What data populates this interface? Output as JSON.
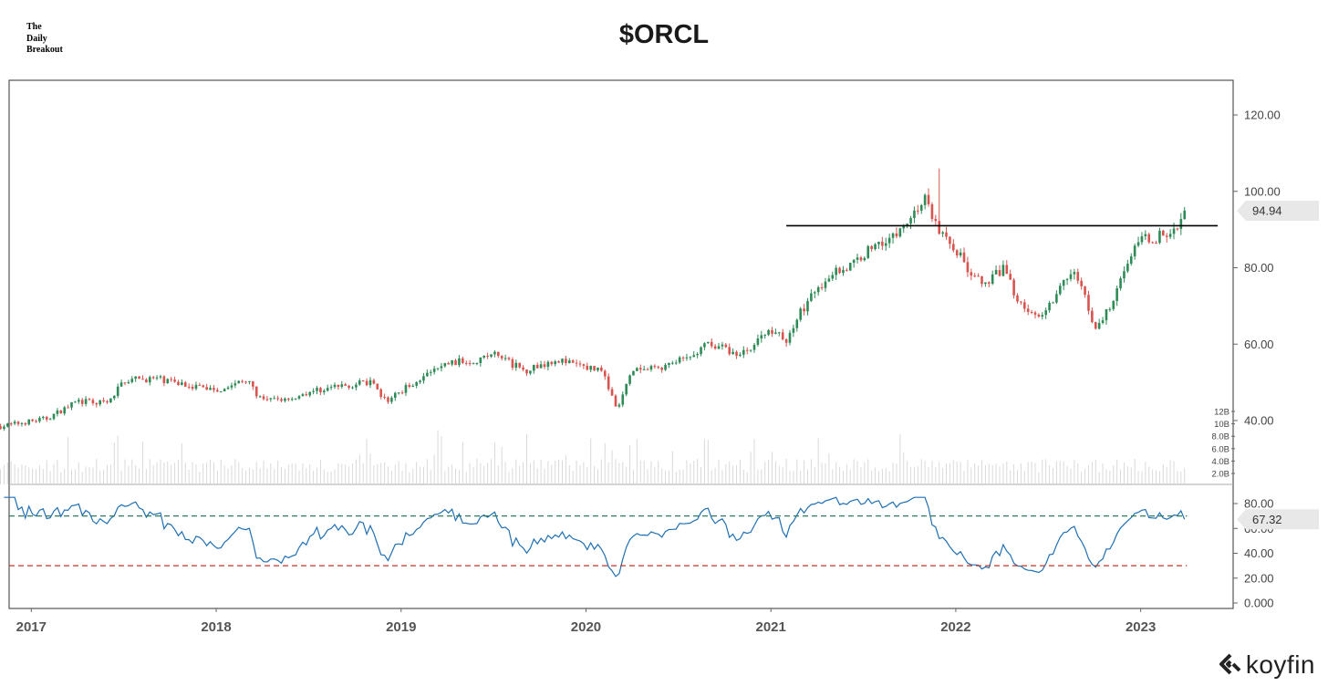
{
  "brand": {
    "line1": "The",
    "line2": "Daily",
    "line3": "Breakout"
  },
  "title": "$ORCL",
  "logo": {
    "text": "koyfin",
    "icon": "koyfin-chevron-icon"
  },
  "colors": {
    "up": "#2e8b57",
    "down": "#d9534f",
    "rsi": "#1f6fb2",
    "overbought": "#2e7d5b",
    "oversold": "#c0392b",
    "volume": "#d9d9d9",
    "frame": "#555555"
  },
  "chart_data": [
    {
      "type": "candlestick",
      "title": "$ORCL",
      "interval": "weekly",
      "x_range": [
        "2016-11",
        "2023-06"
      ],
      "x_ticks": [
        "2017",
        "2018",
        "2019",
        "2020",
        "2021",
        "2022",
        "2023"
      ],
      "ylim": [
        30,
        128
      ],
      "y_ticks": [
        "120.00",
        "100.00",
        "80.00",
        "60.00",
        "40.00"
      ],
      "last_price": "94.94",
      "horizontal_line": {
        "y": 91.0,
        "from": "2021-02",
        "to": "2023-06",
        "color": "#000000"
      },
      "price_path": [
        [
          "2016-11",
          38.5
        ],
        [
          "2017-02",
          40.5
        ],
        [
          "2017-04",
          45
        ],
        [
          "2017-06",
          44.5
        ],
        [
          "2017-07",
          50.5
        ],
        [
          "2017-09",
          51
        ],
        [
          "2017-11",
          49.5
        ],
        [
          "2018-01",
          48
        ],
        [
          "2018-03",
          50.5
        ],
        [
          "2018-04",
          45
        ],
        [
          "2018-06",
          46
        ],
        [
          "2018-07",
          47.5
        ],
        [
          "2018-09",
          49
        ],
        [
          "2018-11",
          50
        ],
        [
          "2018-12",
          45
        ],
        [
          "2019-02",
          50.5
        ],
        [
          "2019-04",
          55
        ],
        [
          "2019-06",
          56
        ],
        [
          "2019-07",
          57.5
        ],
        [
          "2019-09",
          53
        ],
        [
          "2019-11",
          56
        ],
        [
          "2020-01",
          54
        ],
        [
          "2020-02",
          53.5
        ],
        [
          "2020-03",
          42.5
        ],
        [
          "2020-04",
          53
        ],
        [
          "2020-06",
          54
        ],
        [
          "2020-08",
          57
        ],
        [
          "2020-09",
          60.5
        ],
        [
          "2020-11",
          57
        ],
        [
          "2021-01",
          64
        ],
        [
          "2021-02",
          61
        ],
        [
          "2021-03",
          69
        ],
        [
          "2021-05",
          79
        ],
        [
          "2021-06",
          80
        ],
        [
          "2021-08",
          87
        ],
        [
          "2021-09",
          88
        ],
        [
          "2021-10",
          93
        ],
        [
          "2021-11",
          98
        ],
        [
          "2021-12",
          89
        ],
        [
          "2022-01",
          85
        ],
        [
          "2022-02",
          78
        ],
        [
          "2022-03",
          75
        ],
        [
          "2022-04",
          80
        ],
        [
          "2022-05",
          72
        ],
        [
          "2022-06",
          67
        ],
        [
          "2022-07",
          70
        ],
        [
          "2022-08",
          77
        ],
        [
          "2022-09",
          78
        ],
        [
          "2022-10",
          63
        ],
        [
          "2022-11",
          70
        ],
        [
          "2022-12",
          81
        ],
        [
          "2023-01",
          87
        ],
        [
          "2023-02",
          88
        ],
        [
          "2023-03",
          89
        ],
        [
          "2023-04",
          94.94
        ]
      ],
      "spike_high": [
        "2021-12",
        106
      ]
    },
    {
      "type": "bar",
      "series_name": "Volume",
      "y_ticks": [
        "12B",
        "10B",
        "8.0B",
        "6.0B",
        "4.0B",
        "2.0B"
      ],
      "ylim": [
        0,
        13
      ]
    },
    {
      "type": "line",
      "series_name": "RSI",
      "ylim": [
        0,
        88
      ],
      "y_ticks": [
        "80.00",
        "60.00",
        "40.00",
        "20.00",
        "0.000"
      ],
      "last_value": "67.32",
      "overbought": 70,
      "oversold": 30
    }
  ]
}
